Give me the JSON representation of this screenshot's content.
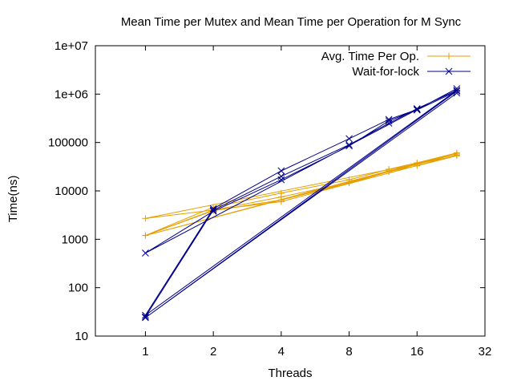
{
  "chart_data": {
    "type": "line",
    "title": "Mean Time per Mutex and Mean Time per Operation for M Sync",
    "xlabel": "Threads",
    "ylabel": "Time(ns)",
    "xscale": "log2",
    "yscale": "log10",
    "xlim": [
      0.6,
      32
    ],
    "ylim": [
      10,
      10000000
    ],
    "xticks": [
      {
        "value": 1,
        "label": "1"
      },
      {
        "value": 2,
        "label": "2"
      },
      {
        "value": 4,
        "label": "4"
      },
      {
        "value": 8,
        "label": "8"
      },
      {
        "value": 16,
        "label": "16"
      },
      {
        "value": 32,
        "label": "32"
      }
    ],
    "yticks": [
      {
        "value": 10,
        "label": "10"
      },
      {
        "value": 100,
        "label": "100"
      },
      {
        "value": 1000,
        "label": "1000"
      },
      {
        "value": 10000,
        "label": "10000"
      },
      {
        "value": 100000,
        "label": "100000"
      },
      {
        "value": 1000000,
        "label": "1e+06"
      },
      {
        "value": 10000000,
        "label": "1e+07"
      }
    ],
    "grid": false,
    "legend_position": "top-right",
    "series": [
      {
        "name": "Avg. Time Per Op.",
        "color": "#e69f00",
        "marker": "plus",
        "x": [
          1,
          2,
          4,
          8,
          12,
          16,
          24,
          1,
          2,
          4,
          8,
          12,
          16,
          24,
          1,
          2,
          4,
          8,
          12,
          16,
          24,
          1,
          4,
          24
        ],
        "y": [
          1200,
          4000,
          7500,
          15000,
          26000,
          36000,
          58000,
          1200,
          4600,
          9000,
          17000,
          28000,
          38000,
          61000,
          1200,
          3900,
          6500,
          14500,
          25000,
          33000,
          53000,
          2700,
          6000,
          55000
        ]
      },
      {
        "name": "Wait-for-lock",
        "color": "#00008b",
        "marker": "cross",
        "x": [
          1,
          2,
          4,
          8,
          12,
          16,
          24,
          1,
          2,
          4,
          8,
          12,
          16,
          24,
          1,
          2,
          4,
          8,
          12,
          16,
          24,
          1,
          24
        ],
        "y": [
          25,
          4000,
          20000,
          90000,
          250000,
          500000,
          1200000,
          27,
          4300,
          26000,
          120000,
          300000,
          480000,
          1300000,
          520,
          3800,
          17000,
          85000,
          280000,
          470000,
          1150000,
          24,
          1050000
        ]
      }
    ]
  }
}
